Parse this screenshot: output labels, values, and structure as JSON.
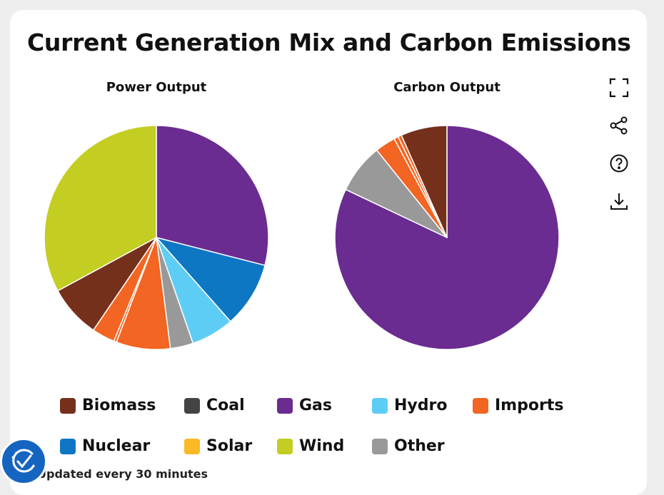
{
  "title": "Current Generation Mix and Carbon Emissions",
  "footer": "Updated every 30 minutes",
  "toolbar": {
    "icons": [
      "fullscreen-icon",
      "share-icon",
      "help-icon",
      "download-icon"
    ]
  },
  "legend": [
    {
      "label": "Biomass",
      "color": "#74301b"
    },
    {
      "label": "Coal",
      "color": "#444444"
    },
    {
      "label": "Gas",
      "color": "#6a2c91"
    },
    {
      "label": "Hydro",
      "color": "#5ecdf5"
    },
    {
      "label": "Imports",
      "color": "#f26522"
    },
    {
      "label": "Nuclear",
      "color": "#0e77c3"
    },
    {
      "label": "Solar",
      "color": "#fbb925"
    },
    {
      "label": "Wind",
      "color": "#c3cd22"
    },
    {
      "label": "Other",
      "color": "#999999"
    }
  ],
  "chart_data": [
    {
      "type": "pie",
      "title": "Power Output",
      "start_angle_deg": 0,
      "direction": "clockwise",
      "slices": [
        {
          "label": "Gas",
          "value": 29.0,
          "color": "#6a2c91"
        },
        {
          "label": "Nuclear",
          "value": 9.5,
          "color": "#0e77c3"
        },
        {
          "label": "Hydro",
          "value": 6.2,
          "color": "#5ecdf5"
        },
        {
          "label": "Other",
          "value": 3.3,
          "color": "#999999"
        },
        {
          "label": "Imports",
          "value": 7.8,
          "color": "#f26522"
        },
        {
          "label": "Imports",
          "value": 0.4,
          "color": "#f26522"
        },
        {
          "label": "Imports",
          "value": 3.3,
          "color": "#f26522"
        },
        {
          "label": "Biomass",
          "value": 7.6,
          "color": "#74301b"
        },
        {
          "label": "Wind",
          "value": 32.9,
          "color": "#c3cd22"
        }
      ]
    },
    {
      "type": "pie",
      "title": "Carbon Output",
      "start_angle_deg": 0,
      "direction": "clockwise",
      "slices": [
        {
          "label": "Gas",
          "value": 80.0,
          "color": "#6a2c91"
        },
        {
          "label": "Other",
          "value": 7.0,
          "color": "#999999"
        },
        {
          "label": "Imports",
          "value": 2.9,
          "color": "#f26522"
        },
        {
          "label": "Imports",
          "value": 0.6,
          "color": "#f26522"
        },
        {
          "label": "Imports",
          "value": 0.5,
          "color": "#f26522"
        },
        {
          "label": "Biomass",
          "value": 6.5,
          "color": "#74301b"
        }
      ]
    }
  ]
}
